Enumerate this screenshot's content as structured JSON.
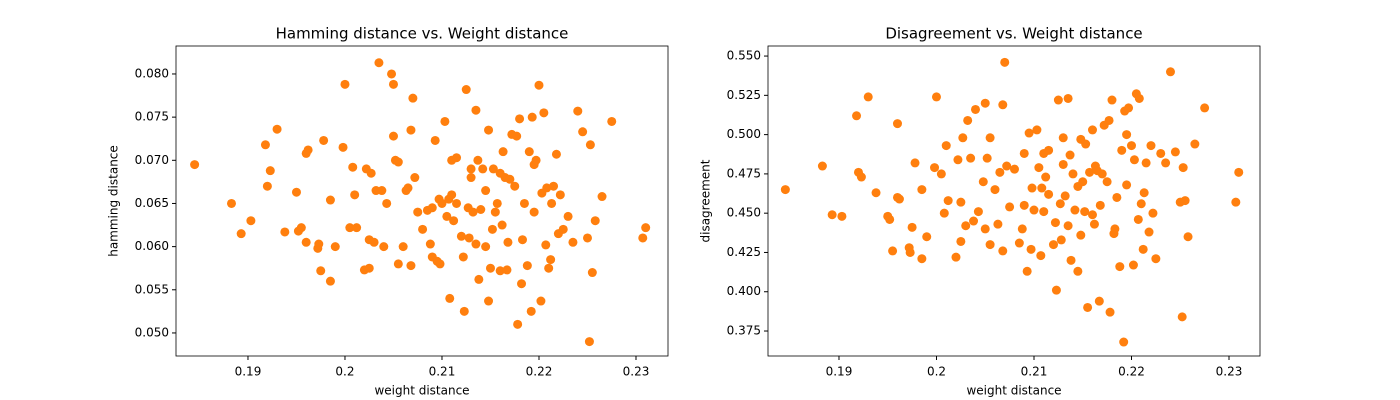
{
  "chart_data": [
    {
      "type": "scatter",
      "title": "Hamming distance vs. Weight distance",
      "x_label": "weight distance",
      "y_label": "hamming distance",
      "color": "#ff7f0e",
      "xlim": [
        0.18258,
        0.2333
      ],
      "ylim": [
        0.04733,
        0.08324
      ],
      "xticks": [
        0.19,
        0.2,
        0.21,
        0.22,
        0.23
      ],
      "yticks": [
        {
          "value": 0.05,
          "label": "0.050"
        },
        {
          "value": 0.055,
          "label": "0.055"
        },
        {
          "value": 0.06,
          "label": "0.060"
        },
        {
          "value": 0.065,
          "label": "0.065"
        },
        {
          "value": 0.07,
          "label": "0.070"
        },
        {
          "value": 0.075,
          "label": "0.075"
        },
        {
          "value": 0.08,
          "label": "0.080"
        }
      ],
      "x": [
        0.1845,
        0.1883,
        0.1893,
        0.1903,
        0.1918,
        0.192,
        0.1923,
        0.193,
        0.1938,
        0.195,
        0.1952,
        0.1955,
        0.196,
        0.196,
        0.1962,
        0.1972,
        0.1973,
        0.1975,
        0.1978,
        0.1985,
        0.1985,
        0.199,
        0.1998,
        0.2,
        0.2005,
        0.2008,
        0.201,
        0.2012,
        0.202,
        0.2022,
        0.2025,
        0.2025,
        0.2027,
        0.203,
        0.2032,
        0.2035,
        0.2038,
        0.204,
        0.2043,
        0.2048,
        0.205,
        0.205,
        0.2052,
        0.2055,
        0.2055,
        0.206,
        0.2063,
        0.2065,
        0.2068,
        0.2068,
        0.207,
        0.2072,
        0.2075,
        0.208,
        0.2085,
        0.2088,
        0.209,
        0.209,
        0.2093,
        0.2095,
        0.2097,
        0.2098,
        0.21,
        0.2103,
        0.2105,
        0.2107,
        0.2108,
        0.211,
        0.211,
        0.2112,
        0.2115,
        0.2115,
        0.212,
        0.2122,
        0.2123,
        0.2125,
        0.2127,
        0.2128,
        0.213,
        0.213,
        0.2132,
        0.2135,
        0.2135,
        0.2137,
        0.2138,
        0.214,
        0.2142,
        0.2145,
        0.2145,
        0.2148,
        0.2148,
        0.215,
        0.2152,
        0.2153,
        0.2155,
        0.2157,
        0.216,
        0.216,
        0.2162,
        0.2163,
        0.2165,
        0.2167,
        0.2168,
        0.217,
        0.2172,
        0.2175,
        0.2177,
        0.2178,
        0.218,
        0.2182,
        0.2183,
        0.2185,
        0.2188,
        0.219,
        0.2192,
        0.2193,
        0.2195,
        0.2195,
        0.2197,
        0.22,
        0.2202,
        0.2203,
        0.2205,
        0.2207,
        0.2208,
        0.221,
        0.2212,
        0.2213,
        0.2215,
        0.2218,
        0.222,
        0.2222,
        0.2225,
        0.223,
        0.2235,
        0.224,
        0.2245,
        0.225,
        0.2252,
        0.2253,
        0.2255,
        0.2258,
        0.2265,
        0.2275,
        0.2307,
        0.231
      ],
      "values": [
        0.0695,
        0.065,
        0.0615,
        0.063,
        0.0718,
        0.067,
        0.0688,
        0.0736,
        0.0617,
        0.0663,
        0.0618,
        0.0622,
        0.0605,
        0.0708,
        0.0712,
        0.0598,
        0.0603,
        0.0572,
        0.0723,
        0.056,
        0.0654,
        0.06,
        0.0715,
        0.0788,
        0.0622,
        0.0692,
        0.066,
        0.0622,
        0.0573,
        0.069,
        0.0608,
        0.0575,
        0.0685,
        0.0605,
        0.0665,
        0.0813,
        0.0665,
        0.06,
        0.065,
        0.08,
        0.0788,
        0.0728,
        0.07,
        0.0698,
        0.058,
        0.06,
        0.0665,
        0.0668,
        0.0735,
        0.0578,
        0.0772,
        0.068,
        0.064,
        0.062,
        0.0642,
        0.0603,
        0.0588,
        0.0645,
        0.0723,
        0.0583,
        0.0655,
        0.058,
        0.065,
        0.0745,
        0.0635,
        0.0655,
        0.054,
        0.066,
        0.07,
        0.063,
        0.065,
        0.0703,
        0.0612,
        0.0588,
        0.0525,
        0.0782,
        0.0645,
        0.061,
        0.068,
        0.069,
        0.064,
        0.0603,
        0.0758,
        0.07,
        0.0562,
        0.0643,
        0.069,
        0.06,
        0.0665,
        0.0735,
        0.0537,
        0.0575,
        0.062,
        0.069,
        0.064,
        0.065,
        0.0572,
        0.0685,
        0.0625,
        0.071,
        0.068,
        0.0573,
        0.0605,
        0.0678,
        0.073,
        0.067,
        0.0728,
        0.051,
        0.0748,
        0.0557,
        0.0608,
        0.065,
        0.0578,
        0.071,
        0.0525,
        0.075,
        0.064,
        0.0695,
        0.07,
        0.0787,
        0.0537,
        0.0662,
        0.0755,
        0.0602,
        0.0668,
        0.0575,
        0.0585,
        0.065,
        0.067,
        0.0707,
        0.0615,
        0.066,
        0.062,
        0.0635,
        0.0605,
        0.0757,
        0.0733,
        0.061,
        0.049,
        0.0718,
        0.057,
        0.063,
        0.0658,
        0.0745,
        0.061,
        0.0622
      ]
    },
    {
      "type": "scatter",
      "title": "Disagreement vs. Weight distance",
      "x_label": "weight distance",
      "y_label": "disagreement",
      "color": "#ff7f0e",
      "xlim": [
        0.18272,
        0.23318
      ],
      "ylim": [
        0.3591,
        0.5564
      ],
      "xticks": [
        0.19,
        0.2,
        0.21,
        0.22,
        0.23
      ],
      "yticks": [
        0.375,
        {
          "value": 0.4,
          "label": "0.400"
        },
        0.425,
        {
          "value": 0.45,
          "label": "0.450"
        },
        0.475,
        {
          "value": 0.5,
          "label": "0.500"
        },
        0.525,
        {
          "value": 0.55,
          "label": "0.550"
        }
      ],
      "x": [
        0.1845,
        0.1883,
        0.1893,
        0.1903,
        0.1918,
        0.192,
        0.1923,
        0.193,
        0.1938,
        0.195,
        0.1952,
        0.1955,
        0.196,
        0.196,
        0.1962,
        0.1972,
        0.1973,
        0.1975,
        0.1978,
        0.1985,
        0.1985,
        0.199,
        0.1998,
        0.2,
        0.2005,
        0.2008,
        0.201,
        0.2012,
        0.202,
        0.2022,
        0.2025,
        0.2025,
        0.2027,
        0.203,
        0.2032,
        0.2035,
        0.2038,
        0.204,
        0.2043,
        0.2048,
        0.205,
        0.205,
        0.2052,
        0.2055,
        0.2055,
        0.206,
        0.2063,
        0.2065,
        0.2068,
        0.2068,
        0.207,
        0.2072,
        0.2075,
        0.208,
        0.2085,
        0.2088,
        0.209,
        0.209,
        0.2093,
        0.2095,
        0.2097,
        0.2098,
        0.21,
        0.2103,
        0.2105,
        0.2107,
        0.2108,
        0.211,
        0.211,
        0.2112,
        0.2115,
        0.2115,
        0.212,
        0.2122,
        0.2123,
        0.2125,
        0.2127,
        0.2128,
        0.213,
        0.213,
        0.2132,
        0.2135,
        0.2135,
        0.2137,
        0.2138,
        0.214,
        0.2142,
        0.2145,
        0.2145,
        0.2148,
        0.2148,
        0.215,
        0.2152,
        0.2153,
        0.2155,
        0.2157,
        0.216,
        0.216,
        0.2162,
        0.2163,
        0.2165,
        0.2167,
        0.2168,
        0.217,
        0.2172,
        0.2175,
        0.2177,
        0.2178,
        0.218,
        0.2182,
        0.2183,
        0.2185,
        0.2188,
        0.219,
        0.2192,
        0.2193,
        0.2195,
        0.2195,
        0.2197,
        0.22,
        0.2202,
        0.2203,
        0.2205,
        0.2207,
        0.2208,
        0.221,
        0.2212,
        0.2213,
        0.2215,
        0.2218,
        0.222,
        0.2222,
        0.2225,
        0.223,
        0.2235,
        0.224,
        0.2245,
        0.225,
        0.2252,
        0.2253,
        0.2255,
        0.2258,
        0.2265,
        0.2275,
        0.2307,
        0.231
      ],
      "values": [
        0.465,
        0.48,
        0.449,
        0.448,
        0.512,
        0.476,
        0.473,
        0.524,
        0.463,
        0.448,
        0.446,
        0.426,
        0.46,
        0.507,
        0.459,
        0.428,
        0.425,
        0.441,
        0.482,
        0.421,
        0.465,
        0.435,
        0.479,
        0.524,
        0.475,
        0.45,
        0.493,
        0.458,
        0.422,
        0.484,
        0.457,
        0.432,
        0.498,
        0.442,
        0.509,
        0.485,
        0.445,
        0.516,
        0.451,
        0.47,
        0.52,
        0.44,
        0.485,
        0.498,
        0.43,
        0.465,
        0.443,
        0.476,
        0.519,
        0.426,
        0.546,
        0.48,
        0.454,
        0.478,
        0.431,
        0.44,
        0.488,
        0.455,
        0.413,
        0.501,
        0.427,
        0.466,
        0.452,
        0.503,
        0.479,
        0.423,
        0.466,
        0.451,
        0.488,
        0.473,
        0.462,
        0.49,
        0.43,
        0.444,
        0.401,
        0.522,
        0.456,
        0.433,
        0.498,
        0.481,
        0.461,
        0.442,
        0.523,
        0.487,
        0.42,
        0.475,
        0.452,
        0.413,
        0.467,
        0.497,
        0.436,
        0.47,
        0.451,
        0.494,
        0.39,
        0.476,
        0.449,
        0.503,
        0.443,
        0.48,
        0.477,
        0.394,
        0.455,
        0.475,
        0.506,
        0.47,
        0.509,
        0.387,
        0.522,
        0.437,
        0.44,
        0.46,
        0.416,
        0.49,
        0.368,
        0.515,
        0.468,
        0.5,
        0.517,
        0.493,
        0.417,
        0.484,
        0.526,
        0.446,
        0.523,
        0.456,
        0.427,
        0.463,
        0.482,
        0.438,
        0.493,
        0.45,
        0.421,
        0.488,
        0.482,
        0.54,
        0.489,
        0.457,
        0.384,
        0.479,
        0.458,
        0.435,
        0.494,
        0.517,
        0.457,
        0.476
      ]
    }
  ]
}
